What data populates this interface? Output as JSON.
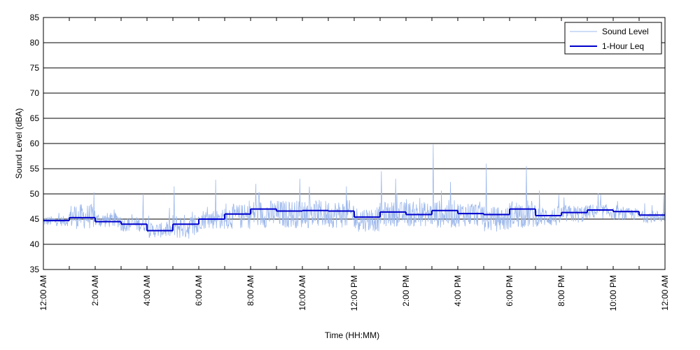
{
  "chart_data": {
    "type": "line",
    "title": "",
    "xlabel": "Time (HH:MM)",
    "ylabel": "Sound Level (dBA)",
    "xlim": [
      0,
      24
    ],
    "ylim": [
      35,
      85
    ],
    "y_ticks": [
      35,
      40,
      45,
      50,
      55,
      60,
      65,
      70,
      75,
      80,
      85
    ],
    "x_ticks": [
      {
        "hour": 0,
        "label": "12:00 AM"
      },
      {
        "hour": 1,
        "label": ""
      },
      {
        "hour": 2,
        "label": "2:00 AM"
      },
      {
        "hour": 3,
        "label": ""
      },
      {
        "hour": 4,
        "label": "4:00 AM"
      },
      {
        "hour": 5,
        "label": ""
      },
      {
        "hour": 6,
        "label": "6:00 AM"
      },
      {
        "hour": 7,
        "label": ""
      },
      {
        "hour": 8,
        "label": "8:00 AM"
      },
      {
        "hour": 9,
        "label": ""
      },
      {
        "hour": 10,
        "label": "10:00 AM"
      },
      {
        "hour": 11,
        "label": ""
      },
      {
        "hour": 12,
        "label": "12:00 PM"
      },
      {
        "hour": 13,
        "label": ""
      },
      {
        "hour": 14,
        "label": "2:00 PM"
      },
      {
        "hour": 15,
        "label": ""
      },
      {
        "hour": 16,
        "label": "4:00 PM"
      },
      {
        "hour": 17,
        "label": ""
      },
      {
        "hour": 18,
        "label": "6:00 PM"
      },
      {
        "hour": 19,
        "label": ""
      },
      {
        "hour": 20,
        "label": "8:00 PM"
      },
      {
        "hour": 21,
        "label": ""
      },
      {
        "hour": 22,
        "label": "10:00 PM"
      },
      {
        "hour": 23,
        "label": ""
      },
      {
        "hour": 24,
        "label": "12:00 AM"
      }
    ],
    "grid": "horizontal",
    "legend_position": "top-right",
    "series": [
      {
        "name": "Sound Level",
        "color": "#9db8ec",
        "style": "thin-line",
        "hourly_mean_dba": [
          44.6,
          45.5,
          44.8,
          44.0,
          42.8,
          43.5,
          45.0,
          45.5,
          46.0,
          46.0,
          46.0,
          46.0,
          45.0,
          46.0,
          46.0,
          46.0,
          46.0,
          45.0,
          46.0,
          45.5,
          46.0,
          46.5,
          46.0,
          45.5
        ],
        "hourly_spread_dba": [
          1.0,
          2.5,
          1.5,
          1.5,
          1.5,
          2.5,
          2.0,
          2.5,
          2.8,
          2.8,
          2.8,
          2.8,
          2.5,
          2.5,
          2.5,
          2.8,
          2.5,
          2.5,
          2.8,
          2.0,
          1.8,
          1.5,
          1.2,
          1.2
        ],
        "peaks": [
          {
            "hour": 1.2,
            "dba": 47.5
          },
          {
            "hour": 3.85,
            "dba": 50.0
          },
          {
            "hour": 5.05,
            "dba": 51.5
          },
          {
            "hour": 6.65,
            "dba": 52.8
          },
          {
            "hour": 8.2,
            "dba": 52.0
          },
          {
            "hour": 9.9,
            "dba": 53.0
          },
          {
            "hour": 11.7,
            "dba": 51.5
          },
          {
            "hour": 13.05,
            "dba": 54.5
          },
          {
            "hour": 13.6,
            "dba": 53.0
          },
          {
            "hour": 15.05,
            "dba": 59.8
          },
          {
            "hour": 17.1,
            "dba": 56.0
          },
          {
            "hour": 18.65,
            "dba": 55.5
          },
          {
            "hour": 23.95,
            "dba": 49.8
          }
        ]
      },
      {
        "name": "1-Hour Leq",
        "color": "#0000cc",
        "style": "step",
        "hour_start": [
          0,
          1,
          2,
          3,
          4,
          5,
          6,
          7,
          8,
          9,
          10,
          11,
          12,
          13,
          14,
          15,
          16,
          17,
          18,
          19,
          20,
          21,
          22,
          23
        ],
        "values": [
          44.7,
          45.3,
          44.5,
          44.0,
          42.7,
          44.0,
          45.0,
          46.0,
          47.0,
          46.6,
          46.7,
          46.6,
          45.4,
          46.4,
          45.9,
          46.7,
          46.1,
          45.9,
          47.0,
          45.7,
          46.3,
          46.8,
          46.5,
          45.8
        ]
      }
    ]
  }
}
